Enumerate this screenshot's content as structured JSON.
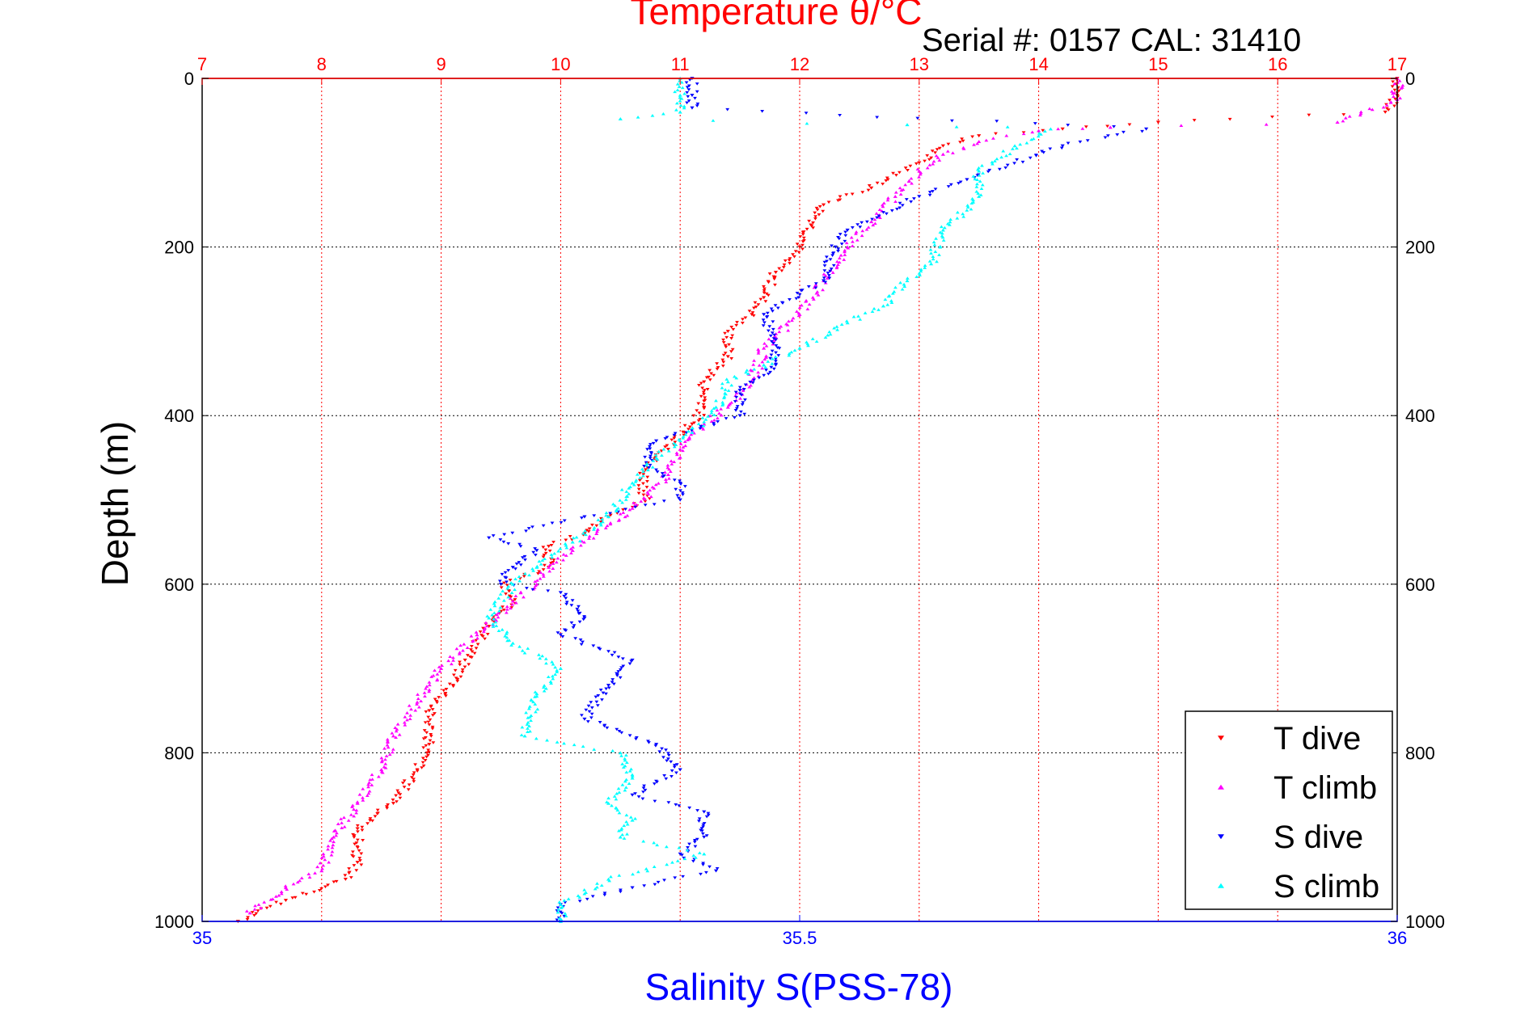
{
  "chart_data": {
    "type": "scatter",
    "title": "Temperature θ/°C",
    "subtitle": "Serial #: 0157  CAL: 31410",
    "ylabel": "Depth (m)",
    "x_top_label": "Temperature θ/°C",
    "x_bottom_label": "Salinity S(PSS-78)",
    "ylim": [
      0,
      1000
    ],
    "y_reversed": true,
    "x_top_lim": [
      7,
      17
    ],
    "x_bottom_lim": [
      35,
      36
    ],
    "x_top_ticks": [
      "7",
      "8",
      "9",
      "10",
      "11",
      "12",
      "13",
      "14",
      "15",
      "16",
      "17"
    ],
    "x_bottom_ticks": [
      "35",
      "35.5",
      "36"
    ],
    "y_ticks": [
      "0",
      "200",
      "400",
      "600",
      "800",
      "1000"
    ],
    "grid": true,
    "legend_position": "bottom-right",
    "colors": {
      "temperature_axis": "#ff0000",
      "salinity_axis": "#0000ff",
      "t_dive": "#ff0000",
      "t_climb": "#ff00ff",
      "s_dive": "#0000ff",
      "s_climb": "#00ffff"
    },
    "series": [
      {
        "name": "T dive",
        "axis": "temperature",
        "marker": "triangle-down",
        "color": "#ff0000",
        "points": [
          [
            17.0,
            0
          ],
          [
            17.0,
            20
          ],
          [
            16.9,
            40
          ],
          [
            15.0,
            52
          ],
          [
            14.2,
            60
          ],
          [
            13.5,
            68
          ],
          [
            13.2,
            80
          ],
          [
            13.0,
            100
          ],
          [
            12.6,
            130
          ],
          [
            12.2,
            150
          ],
          [
            12.1,
            175
          ],
          [
            12.0,
            200
          ],
          [
            11.8,
            230
          ],
          [
            11.7,
            260
          ],
          [
            11.6,
            280
          ],
          [
            11.4,
            300
          ],
          [
            11.4,
            330
          ],
          [
            11.2,
            360
          ],
          [
            11.2,
            390
          ],
          [
            11.1,
            410
          ],
          [
            10.9,
            440
          ],
          [
            10.7,
            460
          ],
          [
            10.7,
            500
          ],
          [
            10.4,
            520
          ],
          [
            10.2,
            540
          ],
          [
            9.9,
            555
          ],
          [
            9.9,
            580
          ],
          [
            9.5,
            600
          ],
          [
            9.6,
            620
          ],
          [
            9.4,
            650
          ],
          [
            9.2,
            690
          ],
          [
            9.1,
            720
          ],
          [
            8.9,
            750
          ],
          [
            8.9,
            790
          ],
          [
            8.8,
            820
          ],
          [
            8.6,
            860
          ],
          [
            8.3,
            890
          ],
          [
            8.3,
            930
          ],
          [
            8.2,
            950
          ],
          [
            7.7,
            975
          ],
          [
            7.3,
            1000
          ]
        ]
      },
      {
        "name": "T climb",
        "axis": "temperature",
        "marker": "triangle-up",
        "color": "#ff00ff",
        "points": [
          [
            17.0,
            0
          ],
          [
            17.0,
            25
          ],
          [
            16.5,
            52
          ],
          [
            14.6,
            58
          ],
          [
            14.0,
            62
          ],
          [
            13.5,
            75
          ],
          [
            13.2,
            90
          ],
          [
            13.0,
            110
          ],
          [
            12.8,
            140
          ],
          [
            12.6,
            170
          ],
          [
            12.4,
            200
          ],
          [
            12.2,
            240
          ],
          [
            12.0,
            280
          ],
          [
            11.7,
            320
          ],
          [
            11.6,
            360
          ],
          [
            11.4,
            390
          ],
          [
            11.2,
            410
          ],
          [
            11.0,
            440
          ],
          [
            10.9,
            470
          ],
          [
            10.6,
            510
          ],
          [
            10.3,
            540
          ],
          [
            10.1,
            560
          ],
          [
            9.9,
            580
          ],
          [
            9.8,
            600
          ],
          [
            9.6,
            620
          ],
          [
            9.3,
            660
          ],
          [
            9.0,
            700
          ],
          [
            8.8,
            740
          ],
          [
            8.6,
            780
          ],
          [
            8.5,
            820
          ],
          [
            8.3,
            860
          ],
          [
            8.1,
            900
          ],
          [
            8.0,
            940
          ],
          [
            7.7,
            960
          ],
          [
            7.4,
            990
          ]
        ]
      },
      {
        "name": "S dive",
        "axis": "salinity",
        "marker": "triangle-down",
        "color": "#0000ff",
        "points": [
          [
            35.41,
            0
          ],
          [
            35.41,
            20
          ],
          [
            35.41,
            35
          ],
          [
            35.79,
            60
          ],
          [
            35.72,
            80
          ],
          [
            35.64,
            120
          ],
          [
            35.6,
            140
          ],
          [
            35.54,
            180
          ],
          [
            35.53,
            200
          ],
          [
            35.52,
            240
          ],
          [
            35.47,
            280
          ],
          [
            35.48,
            310
          ],
          [
            35.48,
            340
          ],
          [
            35.45,
            370
          ],
          [
            35.45,
            400
          ],
          [
            35.38,
            430
          ],
          [
            35.37,
            460
          ],
          [
            35.4,
            480
          ],
          [
            35.4,
            500
          ],
          [
            35.32,
            520
          ],
          [
            35.24,
            545
          ],
          [
            35.28,
            560
          ],
          [
            35.26,
            580
          ],
          [
            35.25,
            600
          ],
          [
            35.3,
            610
          ],
          [
            35.32,
            640
          ],
          [
            35.3,
            660
          ],
          [
            35.36,
            690
          ],
          [
            35.34,
            720
          ],
          [
            35.32,
            760
          ],
          [
            35.38,
            790
          ],
          [
            35.4,
            820
          ],
          [
            35.36,
            850
          ],
          [
            35.42,
            870
          ],
          [
            35.42,
            900
          ],
          [
            35.4,
            920
          ],
          [
            35.43,
            940
          ],
          [
            35.36,
            960
          ],
          [
            35.3,
            980
          ],
          [
            35.3,
            1000
          ]
        ]
      },
      {
        "name": "S climb",
        "axis": "salinity",
        "marker": "triangle-up",
        "color": "#00ffff",
        "points": [
          [
            35.4,
            0
          ],
          [
            35.4,
            20
          ],
          [
            35.4,
            40
          ],
          [
            35.35,
            48
          ],
          [
            35.59,
            55
          ],
          [
            35.71,
            60
          ],
          [
            35.68,
            80
          ],
          [
            35.65,
            110
          ],
          [
            35.65,
            140
          ],
          [
            35.62,
            180
          ],
          [
            35.61,
            220
          ],
          [
            35.59,
            240
          ],
          [
            35.57,
            270
          ],
          [
            35.54,
            290
          ],
          [
            35.5,
            320
          ],
          [
            35.47,
            340
          ],
          [
            35.44,
            360
          ],
          [
            35.43,
            390
          ],
          [
            35.41,
            420
          ],
          [
            35.38,
            450
          ],
          [
            35.36,
            480
          ],
          [
            35.34,
            520
          ],
          [
            35.31,
            550
          ],
          [
            35.28,
            580
          ],
          [
            35.26,
            600
          ],
          [
            35.24,
            640
          ],
          [
            35.26,
            670
          ],
          [
            35.3,
            700
          ],
          [
            35.28,
            730
          ],
          [
            35.27,
            780
          ],
          [
            35.35,
            800
          ],
          [
            35.36,
            830
          ],
          [
            35.34,
            860
          ],
          [
            35.36,
            880
          ],
          [
            35.35,
            900
          ],
          [
            35.42,
            920
          ],
          [
            35.34,
            950
          ],
          [
            35.3,
            980
          ],
          [
            35.3,
            1000
          ]
        ]
      }
    ]
  },
  "legend": {
    "items": [
      {
        "label": "T dive",
        "color": "#ff0000",
        "marker": "triangle-down"
      },
      {
        "label": "T climb",
        "color": "#ff00ff",
        "marker": "triangle-up"
      },
      {
        "label": "S dive",
        "color": "#0000ff",
        "marker": "triangle-down"
      },
      {
        "label": "S climb",
        "color": "#00ffff",
        "marker": "triangle-up"
      }
    ]
  }
}
